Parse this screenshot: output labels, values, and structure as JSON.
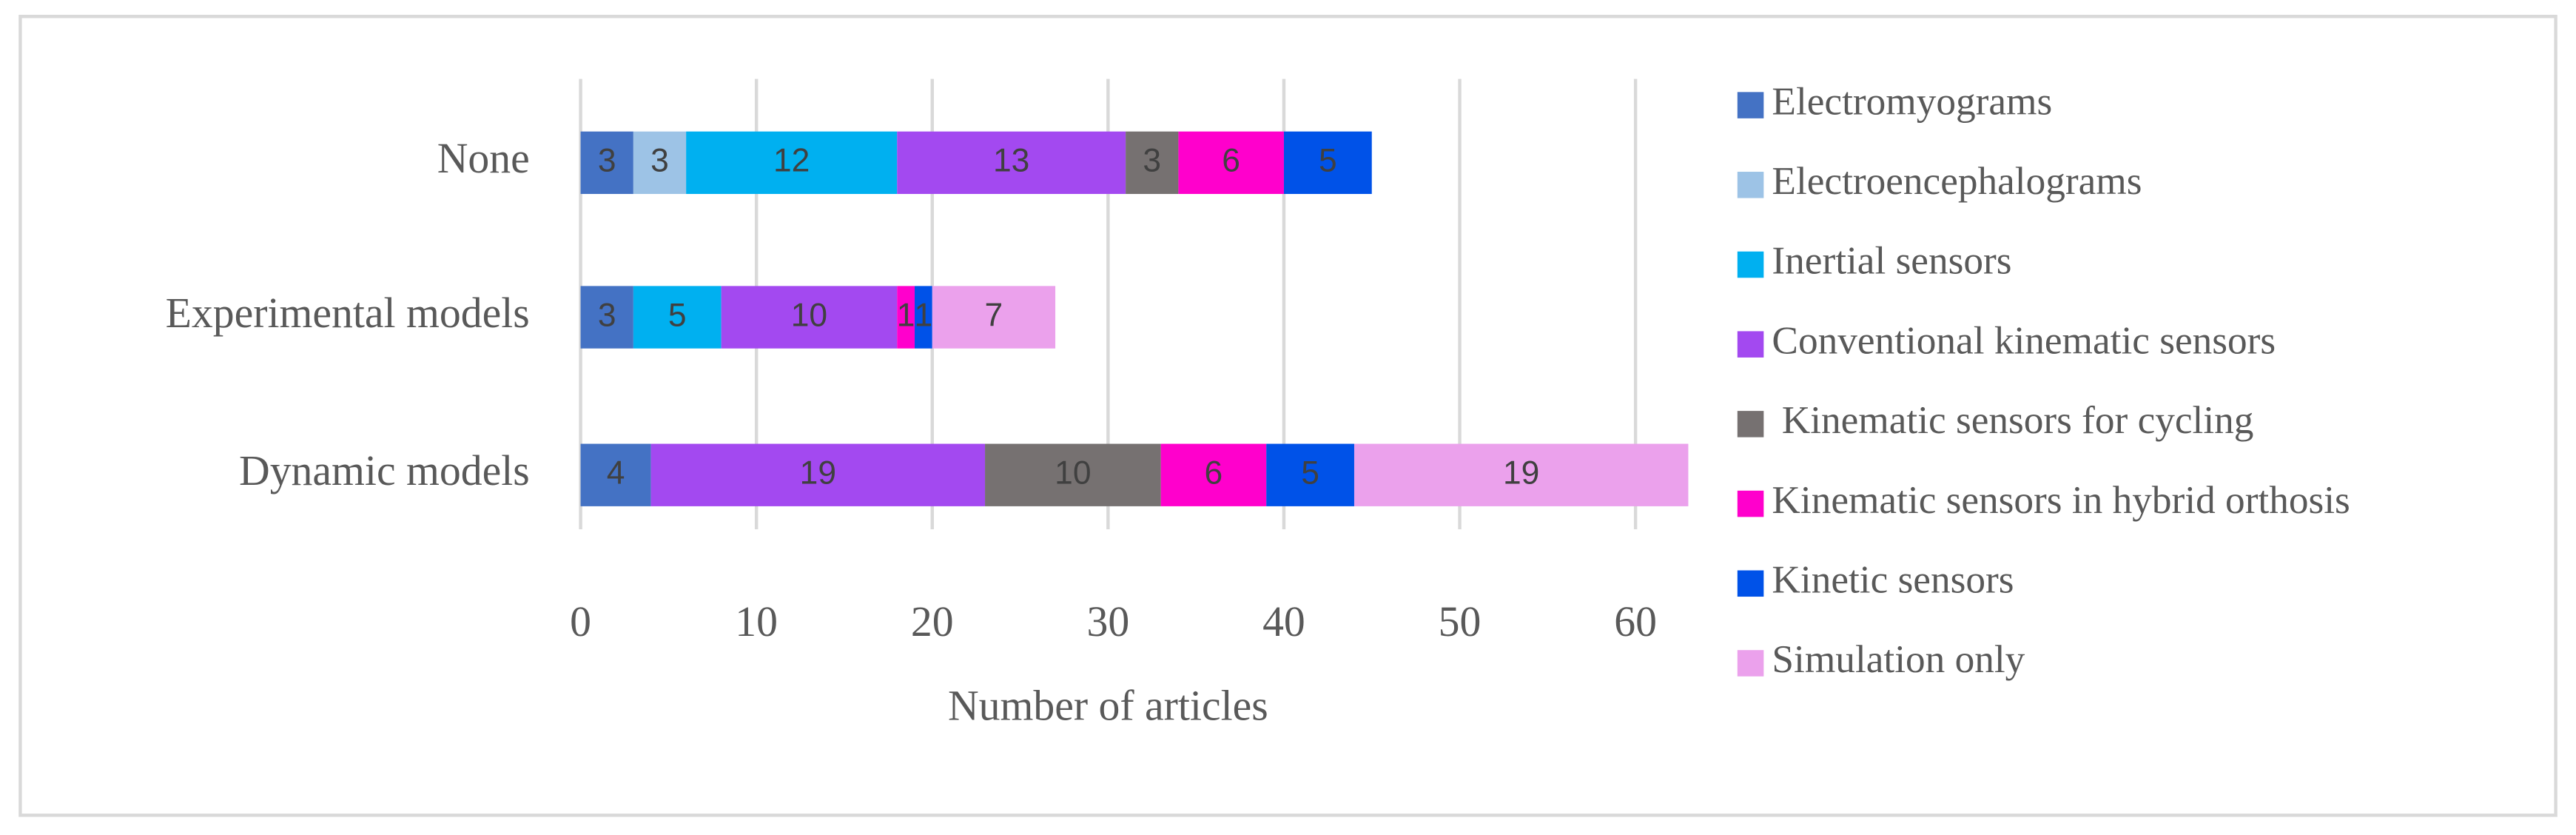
{
  "chart_data": {
    "type": "stacked-barh",
    "xlabel": "Number of articles",
    "categories": [
      "None",
      "Experimental models",
      "Dynamic models"
    ],
    "series": [
      {
        "name": "Electromyograms",
        "color": "#4472c4",
        "values": [
          3,
          3,
          4
        ]
      },
      {
        "name": "Electroencephalograms",
        "color": "#9dc3e6",
        "values": [
          3,
          null,
          null
        ]
      },
      {
        "name": "Inertial sensors",
        "color": "#00b0f0",
        "values": [
          12,
          5,
          null
        ]
      },
      {
        "name": "Conventional kinematic sensors",
        "color": "#a349f0",
        "values": [
          13,
          10,
          19
        ]
      },
      {
        "name": " Kinematic sensors for cycling",
        "color": "#767171",
        "values": [
          3,
          null,
          10
        ]
      },
      {
        "name": "Kinematic sensors in hybrid orthosis",
        "color": "#ff00cc",
        "values": [
          6,
          1,
          6
        ]
      },
      {
        "name": "Kinetic sensors",
        "color": "#0052e8",
        "values": [
          5,
          1,
          5
        ]
      },
      {
        "name": "Simulation only",
        "color": "#eba1ec",
        "values": [
          null,
          7,
          19
        ]
      }
    ],
    "xlim": [
      0,
      60
    ],
    "xticks": [
      0,
      10,
      20,
      30,
      40,
      50,
      60
    ],
    "grid": true,
    "legend": "right"
  }
}
